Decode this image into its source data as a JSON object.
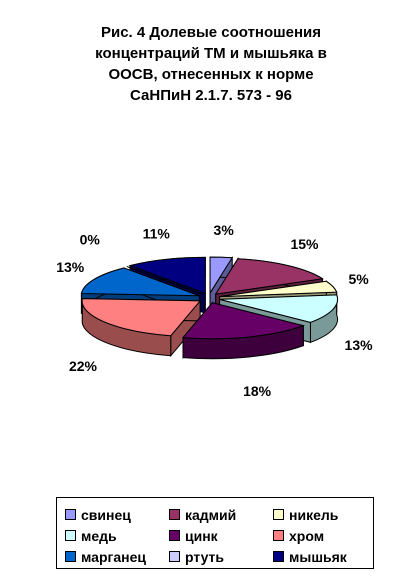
{
  "title_lines": [
    "Рис. 4 Долевые соотношения",
    "концентраций ТМ и мышьяка в",
    "ООСВ, отнесенных к норме",
    "СаНПиН 2.1.7. 573 - 96"
  ],
  "chart_data": {
    "type": "pie",
    "title": "Рис. 4 Долевые соотношения концентраций ТМ и мышьяка в ООСВ, отнесенных к норме СаНПиН 2.1.7. 573 - 96",
    "legend_position": "bottom",
    "slices": [
      {
        "name": "свинец",
        "value": 3,
        "label": "3%",
        "color": "#9999ff"
      },
      {
        "name": "кадмий",
        "value": 15,
        "label": "15%",
        "color": "#993366"
      },
      {
        "name": "никель",
        "value": 5,
        "label": "5%",
        "color": "#ffffcc"
      },
      {
        "name": "медь",
        "value": 13,
        "label": "13%",
        "color": "#ccffff"
      },
      {
        "name": "цинк",
        "value": 18,
        "label": "18%",
        "color": "#660066"
      },
      {
        "name": "хром",
        "value": 22,
        "label": "22%",
        "color": "#ff8080"
      },
      {
        "name": "марганец",
        "value": 13,
        "label": "13%",
        "color": "#0066cc"
      },
      {
        "name": "ртуть",
        "value": 0,
        "label": "0%",
        "color": "#ccccff"
      },
      {
        "name": "мышьяк",
        "value": 11,
        "label": "11%",
        "color": "#000080"
      }
    ]
  }
}
